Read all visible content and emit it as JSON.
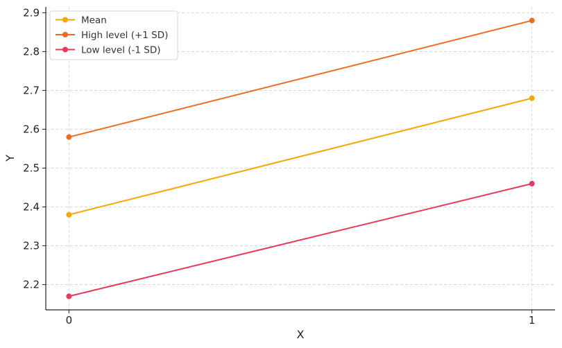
{
  "chart_data": {
    "type": "line",
    "x": [
      0,
      1
    ],
    "series": [
      {
        "name": "Mean",
        "values": [
          2.38,
          2.68
        ],
        "color": "#f5a800"
      },
      {
        "name": "High level (+1 SD)",
        "values": [
          2.58,
          2.88
        ],
        "color": "#f06a1e"
      },
      {
        "name": "Low level (-1 SD)",
        "values": [
          2.17,
          2.46
        ],
        "color": "#e8395a"
      }
    ],
    "xlabel": "X",
    "ylabel": "Y",
    "xlim": [
      -0.05,
      1.05
    ],
    "ylim": [
      2.135,
      2.915
    ],
    "xticks": [
      0,
      1
    ],
    "yticks": [
      2.2,
      2.3,
      2.4,
      2.5,
      2.6,
      2.7,
      2.8,
      2.9
    ],
    "grid": true,
    "legend_position": "top-left"
  }
}
